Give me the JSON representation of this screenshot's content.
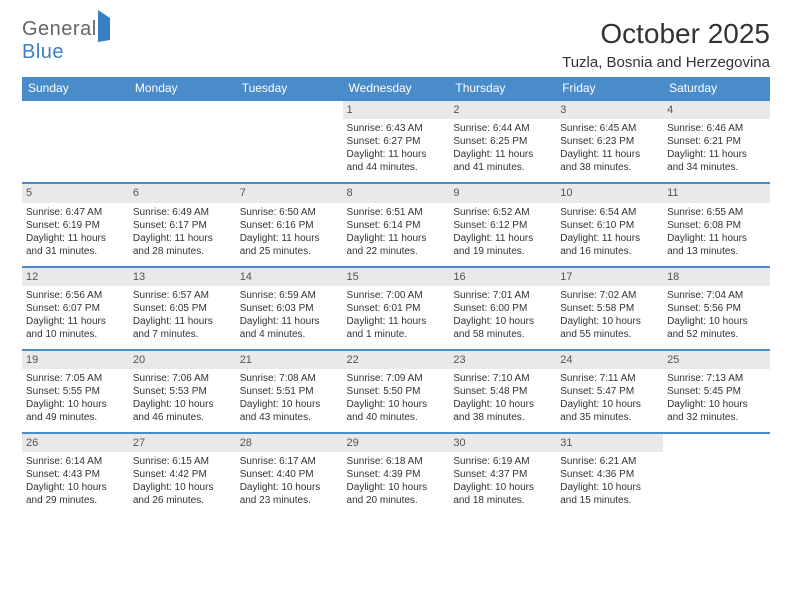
{
  "logo": {
    "word1": "General",
    "word2": "Blue"
  },
  "title": "October 2025",
  "location": "Tuzla, Bosnia and Herzegovina",
  "colors": {
    "header_bg": "#4a8bc9",
    "header_text": "#ffffff",
    "daynum_bg": "#e9e9e9",
    "text": "#333333",
    "rule": "#4a8bc9",
    "logo_blue": "#3b7fc4",
    "logo_gray": "#666666",
    "background": "#ffffff"
  },
  "typography": {
    "title_fontsize": 28,
    "location_fontsize": 15,
    "dayheader_fontsize": 12,
    "daynum_fontsize": 11,
    "body_fontsize": 10
  },
  "day_headers": [
    "Sunday",
    "Monday",
    "Tuesday",
    "Wednesday",
    "Thursday",
    "Friday",
    "Saturday"
  ],
  "weeks": [
    [
      {
        "n": "",
        "lines": []
      },
      {
        "n": "",
        "lines": []
      },
      {
        "n": "",
        "lines": []
      },
      {
        "n": "1",
        "lines": [
          "Sunrise: 6:43 AM",
          "Sunset: 6:27 PM",
          "Daylight: 11 hours",
          "and 44 minutes."
        ]
      },
      {
        "n": "2",
        "lines": [
          "Sunrise: 6:44 AM",
          "Sunset: 6:25 PM",
          "Daylight: 11 hours",
          "and 41 minutes."
        ]
      },
      {
        "n": "3",
        "lines": [
          "Sunrise: 6:45 AM",
          "Sunset: 6:23 PM",
          "Daylight: 11 hours",
          "and 38 minutes."
        ]
      },
      {
        "n": "4",
        "lines": [
          "Sunrise: 6:46 AM",
          "Sunset: 6:21 PM",
          "Daylight: 11 hours",
          "and 34 minutes."
        ]
      }
    ],
    [
      {
        "n": "5",
        "lines": [
          "Sunrise: 6:47 AM",
          "Sunset: 6:19 PM",
          "Daylight: 11 hours",
          "and 31 minutes."
        ]
      },
      {
        "n": "6",
        "lines": [
          "Sunrise: 6:49 AM",
          "Sunset: 6:17 PM",
          "Daylight: 11 hours",
          "and 28 minutes."
        ]
      },
      {
        "n": "7",
        "lines": [
          "Sunrise: 6:50 AM",
          "Sunset: 6:16 PM",
          "Daylight: 11 hours",
          "and 25 minutes."
        ]
      },
      {
        "n": "8",
        "lines": [
          "Sunrise: 6:51 AM",
          "Sunset: 6:14 PM",
          "Daylight: 11 hours",
          "and 22 minutes."
        ]
      },
      {
        "n": "9",
        "lines": [
          "Sunrise: 6:52 AM",
          "Sunset: 6:12 PM",
          "Daylight: 11 hours",
          "and 19 minutes."
        ]
      },
      {
        "n": "10",
        "lines": [
          "Sunrise: 6:54 AM",
          "Sunset: 6:10 PM",
          "Daylight: 11 hours",
          "and 16 minutes."
        ]
      },
      {
        "n": "11",
        "lines": [
          "Sunrise: 6:55 AM",
          "Sunset: 6:08 PM",
          "Daylight: 11 hours",
          "and 13 minutes."
        ]
      }
    ],
    [
      {
        "n": "12",
        "lines": [
          "Sunrise: 6:56 AM",
          "Sunset: 6:07 PM",
          "Daylight: 11 hours",
          "and 10 minutes."
        ]
      },
      {
        "n": "13",
        "lines": [
          "Sunrise: 6:57 AM",
          "Sunset: 6:05 PM",
          "Daylight: 11 hours",
          "and 7 minutes."
        ]
      },
      {
        "n": "14",
        "lines": [
          "Sunrise: 6:59 AM",
          "Sunset: 6:03 PM",
          "Daylight: 11 hours",
          "and 4 minutes."
        ]
      },
      {
        "n": "15",
        "lines": [
          "Sunrise: 7:00 AM",
          "Sunset: 6:01 PM",
          "Daylight: 11 hours",
          "and 1 minute."
        ]
      },
      {
        "n": "16",
        "lines": [
          "Sunrise: 7:01 AM",
          "Sunset: 6:00 PM",
          "Daylight: 10 hours",
          "and 58 minutes."
        ]
      },
      {
        "n": "17",
        "lines": [
          "Sunrise: 7:02 AM",
          "Sunset: 5:58 PM",
          "Daylight: 10 hours",
          "and 55 minutes."
        ]
      },
      {
        "n": "18",
        "lines": [
          "Sunrise: 7:04 AM",
          "Sunset: 5:56 PM",
          "Daylight: 10 hours",
          "and 52 minutes."
        ]
      }
    ],
    [
      {
        "n": "19",
        "lines": [
          "Sunrise: 7:05 AM",
          "Sunset: 5:55 PM",
          "Daylight: 10 hours",
          "and 49 minutes."
        ]
      },
      {
        "n": "20",
        "lines": [
          "Sunrise: 7:06 AM",
          "Sunset: 5:53 PM",
          "Daylight: 10 hours",
          "and 46 minutes."
        ]
      },
      {
        "n": "21",
        "lines": [
          "Sunrise: 7:08 AM",
          "Sunset: 5:51 PM",
          "Daylight: 10 hours",
          "and 43 minutes."
        ]
      },
      {
        "n": "22",
        "lines": [
          "Sunrise: 7:09 AM",
          "Sunset: 5:50 PM",
          "Daylight: 10 hours",
          "and 40 minutes."
        ]
      },
      {
        "n": "23",
        "lines": [
          "Sunrise: 7:10 AM",
          "Sunset: 5:48 PM",
          "Daylight: 10 hours",
          "and 38 minutes."
        ]
      },
      {
        "n": "24",
        "lines": [
          "Sunrise: 7:11 AM",
          "Sunset: 5:47 PM",
          "Daylight: 10 hours",
          "and 35 minutes."
        ]
      },
      {
        "n": "25",
        "lines": [
          "Sunrise: 7:13 AM",
          "Sunset: 5:45 PM",
          "Daylight: 10 hours",
          "and 32 minutes."
        ]
      }
    ],
    [
      {
        "n": "26",
        "lines": [
          "Sunrise: 6:14 AM",
          "Sunset: 4:43 PM",
          "Daylight: 10 hours",
          "and 29 minutes."
        ]
      },
      {
        "n": "27",
        "lines": [
          "Sunrise: 6:15 AM",
          "Sunset: 4:42 PM",
          "Daylight: 10 hours",
          "and 26 minutes."
        ]
      },
      {
        "n": "28",
        "lines": [
          "Sunrise: 6:17 AM",
          "Sunset: 4:40 PM",
          "Daylight: 10 hours",
          "and 23 minutes."
        ]
      },
      {
        "n": "29",
        "lines": [
          "Sunrise: 6:18 AM",
          "Sunset: 4:39 PM",
          "Daylight: 10 hours",
          "and 20 minutes."
        ]
      },
      {
        "n": "30",
        "lines": [
          "Sunrise: 6:19 AM",
          "Sunset: 4:37 PM",
          "Daylight: 10 hours",
          "and 18 minutes."
        ]
      },
      {
        "n": "31",
        "lines": [
          "Sunrise: 6:21 AM",
          "Sunset: 4:36 PM",
          "Daylight: 10 hours",
          "and 15 minutes."
        ]
      },
      {
        "n": "",
        "lines": []
      }
    ]
  ]
}
